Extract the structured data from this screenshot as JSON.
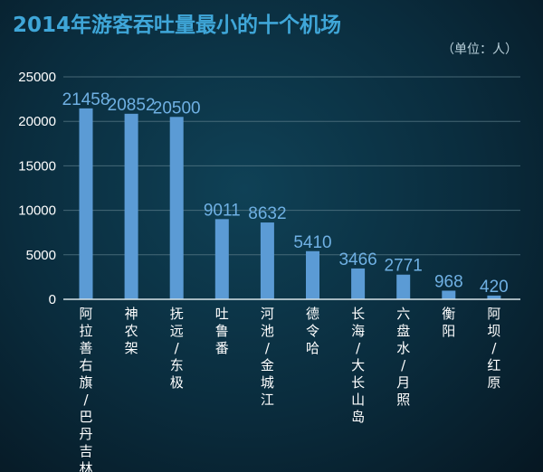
{
  "chart_data": {
    "type": "bar",
    "title": "2014年游客吞吐量最小的十个机场",
    "unit": "（单位：人）",
    "categories": [
      "阿拉善右旗/巴丹吉林",
      "神农架",
      "抚远/东极",
      "吐鲁番",
      "河池/金城江",
      "德令哈",
      "长海/大长山岛",
      "六盘水/月照",
      "衡阳",
      "阿坝/红原"
    ],
    "values": [
      21458,
      20852,
      20500,
      9011,
      8632,
      5410,
      3466,
      2771,
      968,
      420
    ],
    "value_labels": [
      "21458",
      "20852",
      "20500",
      "9011",
      "8632",
      "5410",
      "3466",
      "2771",
      "968",
      "420"
    ],
    "ylim": [
      0,
      25000
    ],
    "yticks": [
      "0",
      "5000",
      "10000",
      "15000",
      "20000",
      "25000"
    ],
    "grid": true,
    "colors": {
      "bar": "#5b9bd5",
      "title": "#3fa6d8",
      "value_label": "#6fb0e3"
    }
  }
}
